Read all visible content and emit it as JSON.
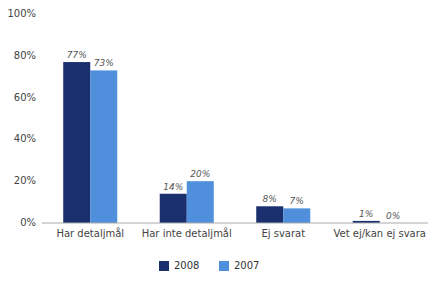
{
  "chart_data": {
    "type": "bar",
    "categories": [
      "Har detaljmål",
      "Har inte detaljmål",
      "Ej svarat",
      "Vet ej/kan ej svara"
    ],
    "series": [
      {
        "name": "2008",
        "color": "#1a2f6e",
        "values": [
          77,
          14,
          8,
          1
        ],
        "value_labels": [
          "77%",
          "14%",
          "8%",
          "1%"
        ]
      },
      {
        "name": "2007",
        "color": "#4f8fdb",
        "values": [
          73,
          20,
          7,
          0
        ],
        "value_labels": [
          "73%",
          "20%",
          "7%",
          "0%"
        ]
      }
    ],
    "ylim": [
      0,
      100
    ],
    "yticks": [
      {
        "value": 0,
        "label": "0%"
      },
      {
        "value": 20,
        "label": "20%"
      },
      {
        "value": 40,
        "label": "40%"
      },
      {
        "value": 60,
        "label": "60%"
      },
      {
        "value": 80,
        "label": "80%"
      },
      {
        "value": 100,
        "label": "100%"
      }
    ],
    "data_labels": true,
    "legend": "bottom",
    "grid": false
  }
}
